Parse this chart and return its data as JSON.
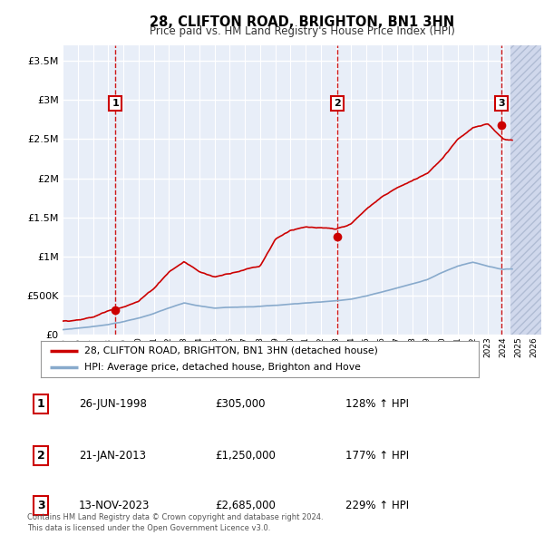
{
  "title": "28, CLIFTON ROAD, BRIGHTON, BN1 3HN",
  "subtitle": "Price paid vs. HM Land Registry's House Price Index (HPI)",
  "ytick_values": [
    0,
    500000,
    1000000,
    1500000,
    2000000,
    2500000,
    3000000,
    3500000
  ],
  "ylim": [
    0,
    3700000
  ],
  "xlim_start": 1995.0,
  "xlim_end": 2026.5,
  "background_color": "#e8eef8",
  "hatch_color": "#d0d8ec",
  "grid_color": "#ffffff",
  "sale_color": "#cc0000",
  "hpi_color": "#88aacc",
  "dashed_line_color": "#cc0000",
  "purchases": [
    {
      "date_year": 1998.48,
      "price": 305000,
      "label": "1"
    },
    {
      "date_year": 2013.05,
      "price": 1250000,
      "label": "2"
    },
    {
      "date_year": 2023.87,
      "price": 2685000,
      "label": "3"
    }
  ],
  "table_rows": [
    {
      "num": "1",
      "date": "26-JUN-1998",
      "price": "£305,000",
      "hpi": "128% ↑ HPI"
    },
    {
      "num": "2",
      "date": "21-JAN-2013",
      "price": "£1,250,000",
      "hpi": "177% ↑ HPI"
    },
    {
      "num": "3",
      "date": "13-NOV-2023",
      "price": "£2,685,000",
      "hpi": "229% ↑ HPI"
    }
  ],
  "legend_entries": [
    "28, CLIFTON ROAD, BRIGHTON, BN1 3HN (detached house)",
    "HPI: Average price, detached house, Brighton and Hove"
  ],
  "footer_text": "Contains HM Land Registry data © Crown copyright and database right 2024.\nThis data is licensed under the Open Government Licence v3.0.",
  "xtick_years": [
    1995,
    1996,
    1997,
    1998,
    1999,
    2000,
    2001,
    2002,
    2003,
    2004,
    2005,
    2006,
    2007,
    2008,
    2009,
    2010,
    2011,
    2012,
    2013,
    2014,
    2015,
    2016,
    2017,
    2018,
    2019,
    2020,
    2021,
    2022,
    2023,
    2024,
    2025,
    2026
  ],
  "hpi_control_pts_x": [
    0,
    1,
    2,
    3,
    4,
    5,
    6,
    7,
    8,
    9,
    10,
    11,
    12,
    13,
    14,
    15,
    16,
    17,
    18,
    19,
    20,
    21,
    22,
    23,
    24,
    25,
    26,
    27,
    28,
    29,
    30,
    31
  ],
  "hpi_control_pts_y": [
    60000,
    80000,
    100000,
    130000,
    165000,
    210000,
    270000,
    340000,
    400000,
    360000,
    330000,
    340000,
    350000,
    360000,
    370000,
    385000,
    400000,
    415000,
    430000,
    450000,
    490000,
    540000,
    590000,
    640000,
    700000,
    790000,
    870000,
    920000,
    870000,
    830000,
    840000,
    850000
  ],
  "red_control_pts_x": [
    0,
    1,
    2,
    3,
    4,
    5,
    6,
    7,
    8,
    9,
    10,
    11,
    12,
    13,
    14,
    15,
    16,
    17,
    18,
    19,
    20,
    21,
    22,
    23,
    24,
    25,
    26,
    27,
    28,
    29,
    30,
    31
  ],
  "red_control_pts_y": [
    170000,
    195000,
    225000,
    305000,
    370000,
    440000,
    600000,
    820000,
    950000,
    820000,
    750000,
    800000,
    860000,
    900000,
    1250000,
    1370000,
    1400000,
    1380000,
    1350000,
    1420000,
    1600000,
    1750000,
    1870000,
    1950000,
    2050000,
    2250000,
    2500000,
    2650000,
    2685000,
    2500000,
    2480000,
    2490000
  ]
}
